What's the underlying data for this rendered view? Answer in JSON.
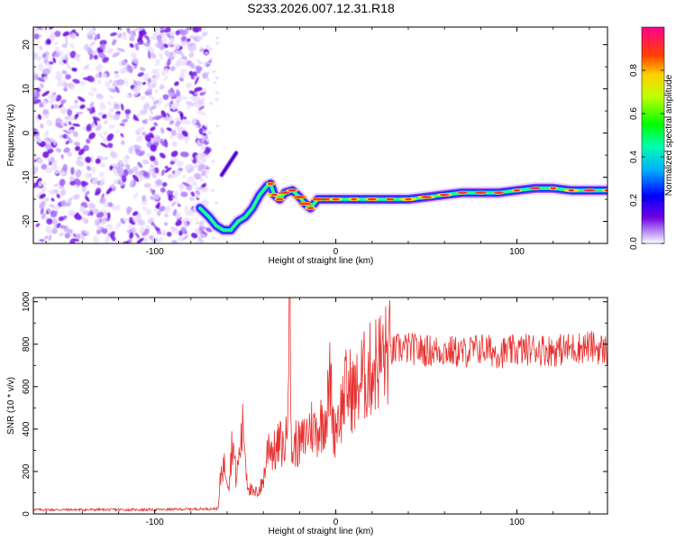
{
  "title": "S233.2026.007.12.31.R18",
  "colors": {
    "snr_line": "#e8302e",
    "scatter": "#7a2cf0",
    "track_core": "#ff3030"
  },
  "chart_data": [
    {
      "type": "heatmap",
      "xlabel": "Height of straight line (km)",
      "ylabel": "Frequency (Hz)",
      "xlim": [
        -167,
        150
      ],
      "ylim": [
        -25,
        24
      ],
      "x_ticks": [
        -100,
        0,
        100
      ],
      "y_ticks": [
        20,
        10,
        0,
        -10,
        -20
      ],
      "colorbar": {
        "label": "Normalized spectral amplitude",
        "range": [
          0.0,
          1.0
        ],
        "ticks": [
          0.0,
          0.2,
          0.4,
          0.6,
          0.8
        ]
      },
      "track": {
        "x": [
          -75,
          -70,
          -66,
          -62,
          -58,
          -54,
          -50,
          -46,
          -42,
          -38,
          -36,
          -34,
          -31,
          -28,
          -24,
          -20,
          -17,
          -14,
          -10,
          -5,
          0,
          10,
          20,
          30,
          40,
          50,
          60,
          70,
          80,
          90,
          100,
          110,
          120,
          130,
          140,
          150
        ],
        "y": [
          -17,
          -19,
          -21,
          -22,
          -22,
          -20,
          -19,
          -17,
          -14,
          -12,
          -11.5,
          -14,
          -15,
          -13.5,
          -13,
          -14.5,
          -16,
          -17,
          -15,
          -15,
          -15,
          -15,
          -15,
          -15,
          -15,
          -14.5,
          -14,
          -13.5,
          -13.5,
          -13.5,
          -13,
          -12.5,
          -12.5,
          -13,
          -13,
          -13
        ]
      },
      "isolated_streak": {
        "x": [
          -63,
          -55
        ],
        "y": [
          -9.5,
          -4.5
        ]
      },
      "noise_region": {
        "x": [
          -167,
          -75
        ],
        "y": [
          -25,
          24
        ]
      }
    },
    {
      "type": "line",
      "xlabel": "Height of straight line (km)",
      "ylabel": "SNR (10 * v/v)",
      "xlim": [
        -167,
        150
      ],
      "ylim": [
        0,
        1020
      ],
      "x_ticks": [
        -100,
        0,
        100
      ],
      "y_ticks": [
        0,
        200,
        400,
        600,
        800,
        1000
      ],
      "series": [
        {
          "x": [
            -167,
            -100,
            -65,
            -63,
            -61,
            -59,
            -57,
            -55,
            -53,
            -51,
            -49,
            -47,
            -45,
            -43,
            -41,
            -39,
            -37,
            -35,
            -33,
            -31,
            -29,
            -27,
            -26,
            -25,
            -24,
            -22,
            -20,
            -17,
            -14,
            -11,
            -8,
            -5,
            -3,
            -1,
            1,
            3,
            5,
            8,
            11,
            14,
            17,
            20,
            23,
            26,
            30,
            35,
            40,
            50,
            60,
            70,
            80,
            90,
            100,
            110,
            120,
            130,
            140,
            150
          ],
          "y": [
            20,
            20,
            25,
            230,
            220,
            150,
            360,
            160,
            300,
            420,
            160,
            110,
            90,
            110,
            130,
            210,
            350,
            300,
            290,
            340,
            310,
            360,
            1040,
            380,
            280,
            340,
            320,
            360,
            420,
            390,
            430,
            480,
            640,
            380,
            460,
            490,
            580,
            590,
            560,
            640,
            650,
            690,
            720,
            740,
            760,
            780,
            780,
            770,
            770,
            760,
            780,
            760,
            770,
            780,
            770,
            780,
            790,
            770
          ]
        }
      ]
    }
  ]
}
